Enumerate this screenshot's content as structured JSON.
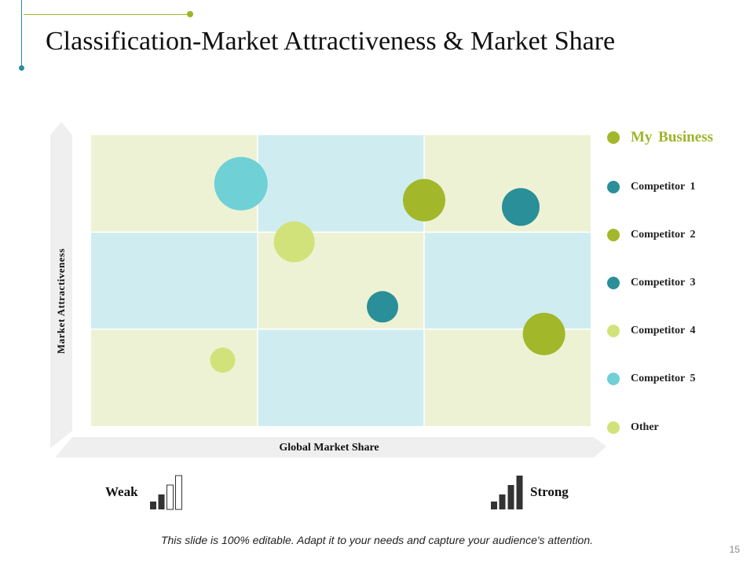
{
  "slide": {
    "title": "Classification-Market Attractiveness & Market Share",
    "footer": "This slide is 100% editable. Adapt it to your needs and capture your audience's attention.",
    "page_number": "15",
    "scale": {
      "weak_label": "Weak",
      "strong_label": "Strong"
    }
  },
  "colors": {
    "cell_green": "#eef2d4",
    "cell_blue": "#cfedf0",
    "axis_band": "#efefef",
    "my_business": "#a2b82a",
    "competitor_1": "#2a8f98",
    "competitor_2": "#a2b82a",
    "competitor_3": "#2a8f98",
    "competitor_4": "#d2e27a",
    "competitor_5": "#6fd0d6",
    "other": "#d2e27a"
  },
  "chart_data": {
    "type": "scatter",
    "title": "Classification-Market Attractiveness & Market Share",
    "xlabel": "Global Market Share",
    "ylabel": "Market Attractiveness",
    "xlim": [
      0,
      3
    ],
    "ylim": [
      0,
      3
    ],
    "grid": "3x3 matrix",
    "legend_position": "right",
    "cells": [
      [
        "green",
        "blue",
        "green"
      ],
      [
        "blue",
        "green",
        "blue"
      ],
      [
        "green",
        "blue",
        "green"
      ]
    ],
    "series": [
      {
        "name": "My Business",
        "color": "#a2b82a",
        "legend_dot": "#a2b82a",
        "points": []
      },
      {
        "name": "Competitor  1",
        "color": "#2a8f98",
        "legend_dot": "#2a8f98",
        "points": [
          {
            "x": 2.58,
            "y": 2.26,
            "size": 24
          }
        ]
      },
      {
        "name": "Competitor  2",
        "color": "#a2b82a",
        "legend_dot": "#a2b82a",
        "points": [
          {
            "x": 2.0,
            "y": 2.33,
            "size": 27
          },
          {
            "x": 2.72,
            "y": 0.95,
            "size": 27
          }
        ]
      },
      {
        "name": "Competitor  3",
        "color": "#2a8f98",
        "legend_dot": "#2a8f98",
        "points": [
          {
            "x": 1.75,
            "y": 1.23,
            "size": 20
          }
        ]
      },
      {
        "name": "Competitor  4",
        "color": "#d2e27a",
        "legend_dot": "#d2e27a",
        "points": [
          {
            "x": 1.22,
            "y": 1.9,
            "size": 26
          }
        ]
      },
      {
        "name": "Competitor  5",
        "color": "#6fd0d6",
        "legend_dot": "#6fd0d6",
        "points": [
          {
            "x": 0.9,
            "y": 2.5,
            "size": 34
          }
        ]
      },
      {
        "name": "Other",
        "color": "#d2e27a",
        "legend_dot": "#d2e27a",
        "points": [
          {
            "x": 0.79,
            "y": 0.68,
            "size": 16
          }
        ]
      }
    ]
  }
}
